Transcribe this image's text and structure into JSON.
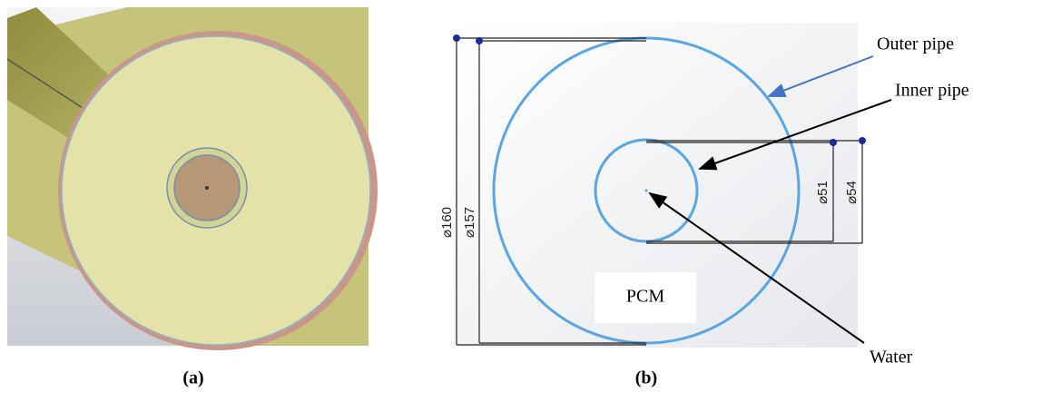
{
  "panel_a": {
    "caption": "(a)"
  },
  "panel_b": {
    "caption": "(b)",
    "labels": {
      "outer_pipe": "Outer pipe",
      "inner_pipe": "Inner pipe",
      "water": "Water",
      "pcm": "PCM"
    },
    "dimensions": [
      "⌀160",
      "⌀157",
      "⌀51",
      "⌀54"
    ]
  }
}
